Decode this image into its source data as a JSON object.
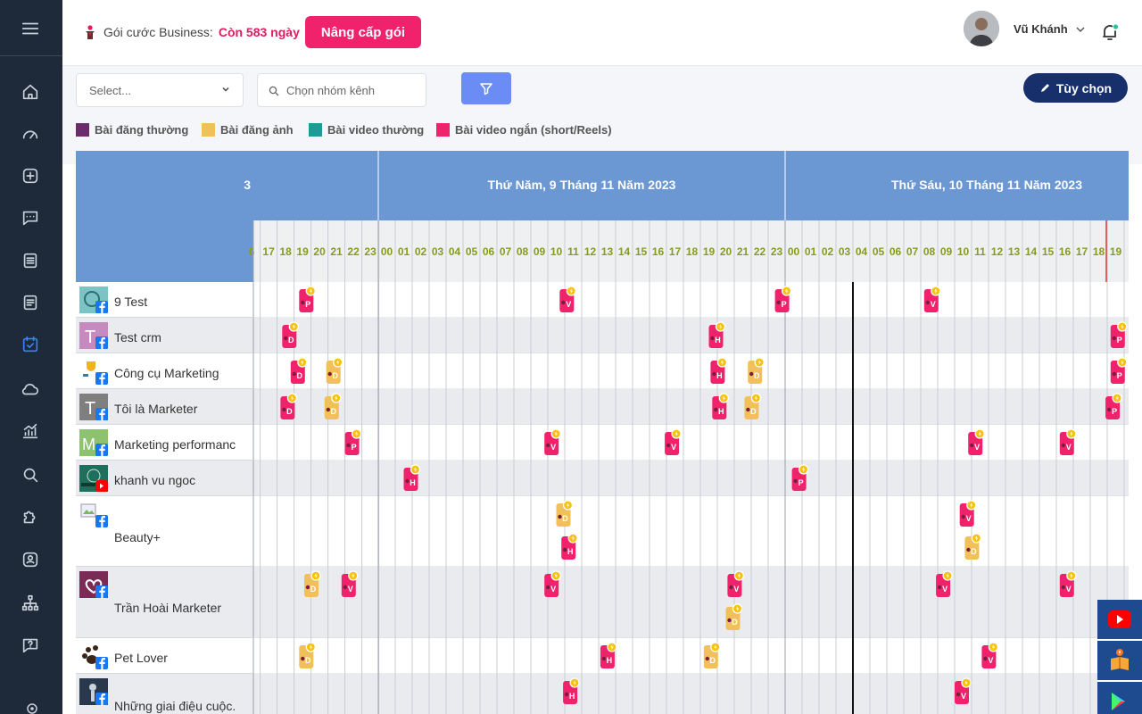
{
  "topbar": {
    "plan_label": "Gói cước Business:",
    "plan_days": "Còn 583 ngày",
    "upgrade_label": "Nâng cấp gói",
    "user_name": "Vũ Khánh"
  },
  "filters": {
    "select_placeholder": "Select...",
    "group_placeholder": "Chọn nhóm kênh",
    "options_label": "Tùy chọn"
  },
  "legend": [
    {
      "label": "Bài đăng thường",
      "color": "#6b2c6b"
    },
    {
      "label": "Bài đăng ảnh",
      "color": "#f1c05a"
    },
    {
      "label": "Bài video thường",
      "color": "#1f9a97"
    },
    {
      "label": "Bài video ngắn (short/Reels)",
      "color": "#f0226c"
    }
  ],
  "calendar": {
    "day_headers": [
      "3",
      "Thứ Năm, 9 Tháng 11 Năm 2023",
      "Thứ Sáu, 10 Tháng 11 Năm 2023"
    ],
    "hours_day0": [
      "6",
      "17",
      "18",
      "19",
      "20",
      "21",
      "22",
      "23"
    ],
    "hours_day1": [
      "00",
      "01",
      "02",
      "03",
      "04",
      "05",
      "06",
      "07",
      "08",
      "09",
      "10",
      "11",
      "12",
      "13",
      "14",
      "15",
      "16",
      "17",
      "18",
      "19",
      "20",
      "21",
      "22",
      "23"
    ],
    "hours_day2": [
      "00",
      "01",
      "02",
      "03",
      "04",
      "05",
      "06",
      "07",
      "08",
      "09",
      "10",
      "11",
      "12",
      "13",
      "14",
      "15",
      "16",
      "17",
      "18",
      "19"
    ],
    "channels": [
      {
        "name": "9 Test",
        "network": "facebook",
        "avatar": "teal"
      },
      {
        "name": "Test crm",
        "network": "facebook",
        "avatar": "T-pink"
      },
      {
        "name": "Công cụ Marketing",
        "network": "facebook",
        "avatar": "trophy"
      },
      {
        "name": "Tôi là Marketer",
        "network": "facebook",
        "avatar": "T-grey"
      },
      {
        "name": "Marketing performanc",
        "network": "facebook",
        "avatar": "M-green"
      },
      {
        "name": "khanh vu ngoc",
        "network": "youtube",
        "avatar": "landscape"
      },
      {
        "name": "Beauty+",
        "network": "facebook",
        "avatar": "broken-image"
      },
      {
        "name": "Trần Hoài Marketer",
        "network": "facebook",
        "avatar": "heart"
      },
      {
        "name": "Pet Lover",
        "network": "facebook",
        "avatar": "paw"
      },
      {
        "name": "Những giai điệu cuộc.",
        "network": "facebook",
        "avatar": "singer"
      }
    ],
    "posts": [
      {
        "row": 0,
        "hour": 19.3,
        "type": "short",
        "letter": "P"
      },
      {
        "row": 0,
        "hour": 34.7,
        "type": "short",
        "letter": "V"
      },
      {
        "row": 0,
        "hour": 47.4,
        "type": "short",
        "letter": "P"
      },
      {
        "row": 0,
        "hour": 56.2,
        "type": "short",
        "letter": "V"
      },
      {
        "row": 1,
        "hour": 18.3,
        "type": "short",
        "letter": "D"
      },
      {
        "row": 1,
        "hour": 43.5,
        "type": "short",
        "letter": "H"
      },
      {
        "row": 1,
        "hour": 67.2,
        "type": "short",
        "letter": "P"
      },
      {
        "row": 2,
        "hour": 18.8,
        "type": "short",
        "letter": "D"
      },
      {
        "row": 2,
        "hour": 20.9,
        "type": "photo",
        "letter": "D"
      },
      {
        "row": 2,
        "hour": 43.6,
        "type": "short",
        "letter": "H"
      },
      {
        "row": 2,
        "hour": 45.8,
        "type": "photo",
        "letter": "D"
      },
      {
        "row": 2,
        "hour": 67.2,
        "type": "short",
        "letter": "P"
      },
      {
        "row": 3,
        "hour": 18.2,
        "type": "short",
        "letter": "D"
      },
      {
        "row": 3,
        "hour": 20.8,
        "type": "photo",
        "letter": "D"
      },
      {
        "row": 3,
        "hour": 43.7,
        "type": "short",
        "letter": "H"
      },
      {
        "row": 3,
        "hour": 45.6,
        "type": "photo",
        "letter": "D"
      },
      {
        "row": 3,
        "hour": 66.9,
        "type": "short",
        "letter": "P"
      },
      {
        "row": 4,
        "hour": 22.0,
        "type": "short",
        "letter": "P"
      },
      {
        "row": 4,
        "hour": 33.8,
        "type": "short",
        "letter": "V"
      },
      {
        "row": 4,
        "hour": 40.9,
        "type": "short",
        "letter": "V"
      },
      {
        "row": 4,
        "hour": 58.8,
        "type": "short",
        "letter": "V"
      },
      {
        "row": 4,
        "hour": 64.2,
        "type": "short",
        "letter": "V"
      },
      {
        "row": 5,
        "hour": 25.5,
        "type": "short",
        "letter": "H"
      },
      {
        "row": 5,
        "hour": 48.4,
        "type": "short",
        "letter": "P"
      },
      {
        "row": 6,
        "hour": 34.5,
        "type": "photo",
        "letter": "D",
        "stack": 0
      },
      {
        "row": 6,
        "hour": 34.8,
        "type": "short",
        "letter": "H",
        "stack": 1
      },
      {
        "row": 6,
        "hour": 58.3,
        "type": "short",
        "letter": "V",
        "stack": 0
      },
      {
        "row": 6,
        "hour": 58.6,
        "type": "photo",
        "letter": "D",
        "stack": 1
      },
      {
        "row": 7,
        "hour": 19.6,
        "type": "photo",
        "letter": "D"
      },
      {
        "row": 7,
        "hour": 21.8,
        "type": "short",
        "letter": "V"
      },
      {
        "row": 7,
        "hour": 33.8,
        "type": "short",
        "letter": "V"
      },
      {
        "row": 7,
        "hour": 44.6,
        "type": "short",
        "letter": "V"
      },
      {
        "row": 7,
        "hour": 44.5,
        "type": "photo",
        "letter": "D",
        "stack": 1
      },
      {
        "row": 7,
        "hour": 56.9,
        "type": "short",
        "letter": "V"
      },
      {
        "row": 7,
        "hour": 64.2,
        "type": "short",
        "letter": "V"
      },
      {
        "row": 8,
        "hour": 19.3,
        "type": "photo",
        "letter": "D"
      },
      {
        "row": 8,
        "hour": 37.1,
        "type": "short",
        "letter": "H"
      },
      {
        "row": 8,
        "hour": 43.2,
        "type": "photo",
        "letter": "D"
      },
      {
        "row": 8,
        "hour": 59.6,
        "type": "short",
        "letter": "V"
      },
      {
        "row": 9,
        "hour": 34.9,
        "type": "short",
        "letter": "H"
      },
      {
        "row": 9,
        "hour": 58.0,
        "type": "short",
        "letter": "V"
      }
    ]
  },
  "colors": {
    "short": "#f0226c",
    "photo": "#f1c05a",
    "header_blue": "#6b97d3",
    "hour_text": "#8a9a1e",
    "sidebar": "#1e2a3a"
  }
}
